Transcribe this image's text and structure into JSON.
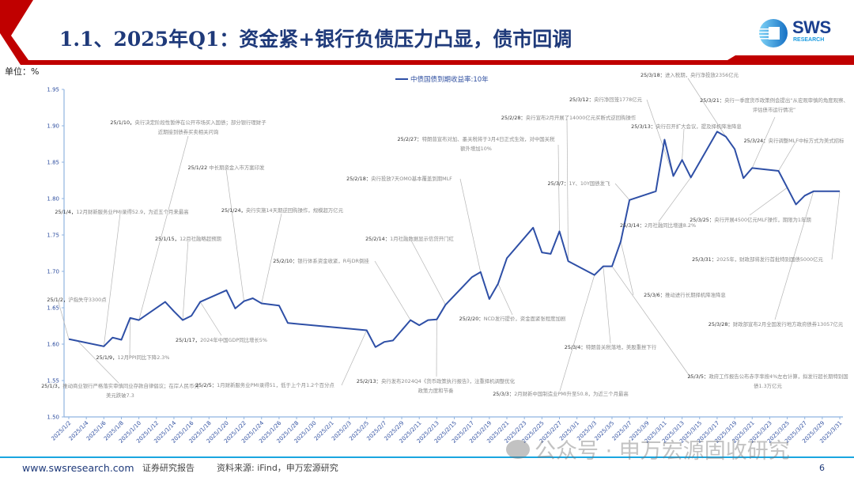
{
  "header": {
    "title": "1.1、2025年Q1：资金紧+银行负债压力凸显，债市回调",
    "logo_text": "SWS",
    "logo_subtext": "RESEARCH",
    "accent_color": "#c00000",
    "title_color": "#1f3a7a"
  },
  "unit_label": "单位：%",
  "chart_data": {
    "type": "line",
    "title": "",
    "xlabel": "",
    "ylabel": "",
    "x_axis": "date",
    "ylim": [
      1.5,
      1.95
    ],
    "y_ticks": [
      "1.50",
      "1.55",
      "1.60",
      "1.65",
      "1.70",
      "1.75",
      "1.80",
      "1.85",
      "1.90",
      "1.95"
    ],
    "x_tick_labels": [
      "2025/1/2",
      "2025/1/4",
      "2025/1/6",
      "2025/1/8",
      "2025/1/10",
      "2025/1/12",
      "2025/1/14",
      "2025/1/16",
      "2025/1/18",
      "2025/1/20",
      "2025/1/22",
      "2025/1/24",
      "2025/1/26",
      "2025/1/28",
      "2025/1/30",
      "2025/2/1",
      "2025/2/3",
      "2025/2/5",
      "2025/2/7",
      "2025/2/9",
      "2025/2/11",
      "2025/2/13",
      "2025/2/15",
      "2025/2/17",
      "2025/2/19",
      "2025/2/21",
      "2025/2/23",
      "2025/2/25",
      "2025/2/27",
      "2025/3/1",
      "2025/3/3",
      "2025/3/5",
      "2025/3/7",
      "2025/3/9",
      "2025/3/11",
      "2025/3/13",
      "2025/3/15",
      "2025/3/17",
      "2025/3/19",
      "2025/3/21",
      "2025/3/23",
      "2025/3/25",
      "2025/3/27",
      "2025/3/29",
      "2025/3/31"
    ],
    "legend_position": "top-center",
    "grid": false,
    "series": [
      {
        "name": "中债国债到期收益率:10年",
        "color": "#2e4fa6",
        "points": [
          [
            "2025-01-02",
            1.607
          ],
          [
            "2025-01-06",
            1.597
          ],
          [
            "2025-01-07",
            1.609
          ],
          [
            "2025-01-08",
            1.606
          ],
          [
            "2025-01-09",
            1.636
          ],
          [
            "2025-01-10",
            1.633
          ],
          [
            "2025-01-13",
            1.658
          ],
          [
            "2025-01-14",
            1.645
          ],
          [
            "2025-01-15",
            1.633
          ],
          [
            "2025-01-16",
            1.639
          ],
          [
            "2025-01-17",
            1.658
          ],
          [
            "2025-01-20",
            1.674
          ],
          [
            "2025-01-21",
            1.649
          ],
          [
            "2025-01-22",
            1.659
          ],
          [
            "2025-01-23",
            1.663
          ],
          [
            "2025-01-24",
            1.656
          ],
          [
            "2025-01-26",
            1.653
          ],
          [
            "2025-01-27",
            1.629
          ],
          [
            "2025-02-05",
            1.619
          ],
          [
            "2025-02-06",
            1.596
          ],
          [
            "2025-02-07",
            1.603
          ],
          [
            "2025-02-08",
            1.605
          ],
          [
            "2025-02-10",
            1.633
          ],
          [
            "2025-02-11",
            1.626
          ],
          [
            "2025-02-12",
            1.633
          ],
          [
            "2025-02-13",
            1.634
          ],
          [
            "2025-02-14",
            1.654
          ],
          [
            "2025-02-17",
            1.692
          ],
          [
            "2025-02-18",
            1.699
          ],
          [
            "2025-02-19",
            1.662
          ],
          [
            "2025-02-20",
            1.683
          ],
          [
            "2025-02-21",
            1.718
          ],
          [
            "2025-02-24",
            1.76
          ],
          [
            "2025-02-25",
            1.726
          ],
          [
            "2025-02-26",
            1.724
          ],
          [
            "2025-02-27",
            1.755
          ],
          [
            "2025-02-28",
            1.714
          ],
          [
            "2025-03-03",
            1.695
          ],
          [
            "2025-03-04",
            1.707
          ],
          [
            "2025-03-05",
            1.707
          ],
          [
            "2025-03-06",
            1.741
          ],
          [
            "2025-03-07",
            1.798
          ],
          [
            "2025-03-10",
            1.81
          ],
          [
            "2025-03-11",
            1.881
          ],
          [
            "2025-03-12",
            1.831
          ],
          [
            "2025-03-13",
            1.853
          ],
          [
            "2025-03-14",
            1.829
          ],
          [
            "2025-03-17",
            1.892
          ],
          [
            "2025-03-18",
            1.885
          ],
          [
            "2025-03-19",
            1.868
          ],
          [
            "2025-03-20",
            1.828
          ],
          [
            "2025-03-21",
            1.842
          ],
          [
            "2025-03-24",
            1.838
          ],
          [
            "2025-03-25",
            1.815
          ],
          [
            "2025-03-26",
            1.792
          ],
          [
            "2025-03-27",
            1.804
          ],
          [
            "2025-03-28",
            1.81
          ],
          [
            "2025-03-31",
            1.81
          ]
        ]
      }
    ],
    "annotations": [
      {
        "date": "25/1/2，",
        "text": "沪指失守3300点",
        "target": "2025-01-02"
      },
      {
        "date": "25/1/3，",
        "text": "推动商业银行严格落实审慎同业存款自律倡议；在岸人民币兑美元跌破7.3",
        "target": "2025-01-03"
      },
      {
        "date": "25/1/4，",
        "text": "12月财新服务业PMI录得52.9，为近五个月来最高",
        "target": "2025-01-06"
      },
      {
        "date": "25/1/9，",
        "text": "12月PPI同比下降2.3%",
        "target": "2025-01-09"
      },
      {
        "date": "25/1/10，",
        "text": "央行决定阶段性暂停在公开市场买入国债；部分银行理财子近期接到债券买卖相关问询",
        "target": "2025-01-10"
      },
      {
        "date": "25/1/15，",
        "text": "12月社融略超预期",
        "target": "2025-01-15"
      },
      {
        "date": "25/1/17，",
        "text": "2024年中国GDP同比增长5%",
        "target": "2025-01-17"
      },
      {
        "date": "25/1/22 ",
        "text": "中长期资金入市方案印发",
        "target": "2025-01-22"
      },
      {
        "date": "25/1/24，",
        "text": "央行实施14天期逆回购操作，规模超万亿元",
        "target": "2025-01-24"
      },
      {
        "date": "25/2/5：",
        "text": "1月财新服务业PMI录得51，低于上个月1.2个百分点",
        "target": "2025-02-05"
      },
      {
        "date": "25/2/10：",
        "text": "银行体系资金收紧，R与DR倒挂",
        "target": "2025-02-10"
      },
      {
        "date": "25/2/13：",
        "text": "央行发布2024Q4《货币政策执行报告》，注重择机调整优化政策力度和节奏",
        "target": "2025-02-13"
      },
      {
        "date": "25/2/14：",
        "text": "1月社融数据显示信贷开门红",
        "target": "2025-02-14"
      },
      {
        "date": "25/2/18：",
        "text": "央行投放7天OMO基本覆盖到期MLF",
        "target": "2025-02-18"
      },
      {
        "date": "25/2/20：",
        "text": "NCD发行提价，资金面紧张程度加剧",
        "target": "2025-02-20"
      },
      {
        "date": "25/2/27：",
        "text": "特朗普宣布对加、墨关税将于3月4日正式生效，对中国关税额外增加10%",
        "target": "2025-02-27"
      },
      {
        "date": "25/2/28：",
        "text": "央行宣布2月开展了14000亿元买断式逆回购操作",
        "target": "2025-02-28"
      },
      {
        "date": "25/3/3：",
        "text": "2月财新中国制造业PMI升至50.8，为近三个月最高",
        "target": "2025-03-03"
      },
      {
        "date": "25/3/4：",
        "text": "特朗普关税落地，美股重挫下行",
        "target": "2025-03-04"
      },
      {
        "date": "25/3/5：",
        "text": "政府工作报告公布赤字率按4%左右计算，拟发行超长期特别国债1.3万亿元",
        "target": "2025-03-05"
      },
      {
        "date": "25/3/6：",
        "text": "推动进行长期择机降准降息",
        "target": "2025-03-06"
      },
      {
        "date": "25/3/7：",
        "text": "1Y、10Y国债发飞",
        "target": "2025-03-07"
      },
      {
        "date": "25/3/12：",
        "text": "央行净回笼1778亿元",
        "target": "2025-03-12"
      },
      {
        "date": "25/3/13：",
        "text": "央行召开扩大会议，提及择机降准降息",
        "target": "2025-03-13"
      },
      {
        "date": "25/3/14：",
        "text": "2月社融同比增速8.2%",
        "target": "2025-03-14"
      },
      {
        "date": "25/3/18：",
        "text": "进入税期，央行净投放2356亿元",
        "target": "2025-03-18"
      },
      {
        "date": "25/3/21：",
        "text": "央行一季度货币政策例会提出“从宏观审慎的角度观察、评估债市运行情况”",
        "target": "2025-03-21"
      },
      {
        "date": "25/3/24：",
        "text": "央行调整MLF中标方式为美式招标",
        "target": "2025-03-24"
      },
      {
        "date": "25/3/25：",
        "text": "央行开展4500亿元MLF操作，期限为1年期",
        "target": "2025-03-25"
      },
      {
        "date": "25/3/28：",
        "text": "财政部宣布2月全国发行地方政府债券13057亿元",
        "target": "2025-03-28"
      },
      {
        "date": "25/3/31：",
        "text": "2025年，财政部将发行首批特别国债5000亿元",
        "target": "2025-03-31"
      }
    ]
  },
  "footer": {
    "url": "www.swsresearch.com",
    "report_type": "证券研究报告",
    "source": "资料来源: iFind，申万宏源研究",
    "page_number": "6",
    "watermark": "公众号 · 申万宏源固收研究"
  }
}
